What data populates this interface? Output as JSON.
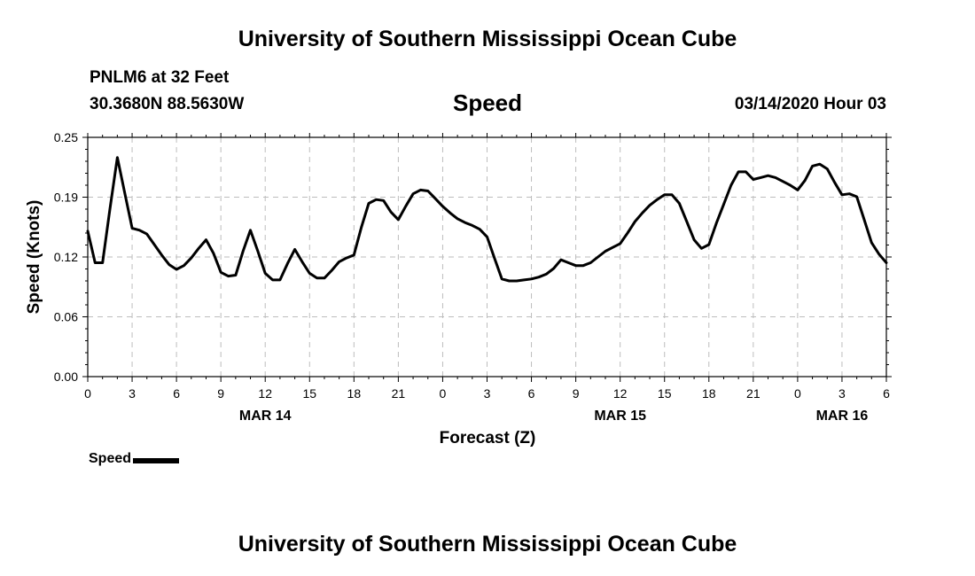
{
  "header": {
    "title_top": "University of Southern Mississippi Ocean Cube",
    "station": "PNLM6 at 32 Feet",
    "coords": "30.3680N 88.5630W",
    "datetime": "03/14/2020 Hour 03",
    "title_bottom": "University of Southern Mississippi Ocean Cube"
  },
  "chart_data": {
    "type": "line",
    "title": "Speed",
    "xlabel": "Forecast (Z)",
    "ylabel": "Speed (Knots)",
    "x_unit": "forecast hour",
    "xlim": [
      0,
      54
    ],
    "ylim": [
      0,
      0.25
    ],
    "yticks": [
      "0.00",
      "0.06",
      "0.12",
      "0.19",
      "0.25"
    ],
    "ytick_values": [
      0,
      0.0625,
      0.125,
      0.1875,
      0.25
    ],
    "xtick_hours": [
      0,
      3,
      6,
      9,
      12,
      15,
      18,
      21,
      24,
      27,
      30,
      33,
      36,
      39,
      42,
      45,
      48,
      51,
      54
    ],
    "xtick_labels": [
      "0",
      "3",
      "6",
      "9",
      "12",
      "15",
      "18",
      "21",
      "0",
      "3",
      "6",
      "9",
      "12",
      "15",
      "18",
      "21",
      "0",
      "3",
      "6"
    ],
    "day_labels": [
      {
        "hour": 12,
        "label": "MAR 14"
      },
      {
        "hour": 36,
        "label": "MAR 15"
      },
      {
        "hour": 51,
        "label": "MAR 16"
      }
    ],
    "grid": true,
    "legend_position": "bottom-left",
    "series": [
      {
        "name": "Speed",
        "color": "#000000",
        "x": [
          0,
          0.5,
          1,
          1.5,
          2,
          2.5,
          3,
          3.5,
          4,
          4.5,
          5,
          5.5,
          6,
          6.5,
          7,
          7.5,
          8,
          8.5,
          9,
          9.5,
          10,
          10.5,
          11,
          11.5,
          12,
          12.5,
          13,
          13.5,
          14,
          14.5,
          15,
          15.5,
          16,
          16.5,
          17,
          17.5,
          18,
          18.5,
          19,
          19.5,
          20,
          20.5,
          21,
          21.5,
          22,
          22.5,
          23,
          23.5,
          24,
          24.5,
          25,
          25.5,
          26,
          26.5,
          27,
          27.5,
          28,
          28.5,
          29,
          29.5,
          30,
          30.5,
          31,
          31.5,
          32,
          32.5,
          33,
          33.5,
          34,
          34.5,
          35,
          35.5,
          36,
          36.5,
          37,
          37.5,
          38,
          38.5,
          39,
          39.5,
          40,
          40.5,
          41,
          41.5,
          42,
          42.5,
          43,
          43.5,
          44,
          44.5,
          45,
          45.5,
          46,
          46.5,
          47,
          47.5,
          48,
          48.5,
          49,
          49.5,
          50,
          50.5,
          51,
          51.5,
          52,
          52.5,
          53,
          53.5,
          54
        ],
        "y": [
          0.152,
          0.119,
          0.119,
          0.175,
          0.229,
          0.192,
          0.155,
          0.153,
          0.149,
          0.138,
          0.127,
          0.117,
          0.112,
          0.116,
          0.124,
          0.134,
          0.143,
          0.129,
          0.109,
          0.105,
          0.106,
          0.131,
          0.153,
          0.131,
          0.108,
          0.101,
          0.101,
          0.118,
          0.133,
          0.12,
          0.108,
          0.103,
          0.103,
          0.111,
          0.12,
          0.124,
          0.127,
          0.156,
          0.181,
          0.185,
          0.184,
          0.172,
          0.164,
          0.178,
          0.191,
          0.195,
          0.194,
          0.186,
          0.178,
          0.171,
          0.165,
          0.161,
          0.158,
          0.154,
          0.146,
          0.124,
          0.102,
          0.1,
          0.1,
          0.101,
          0.102,
          0.104,
          0.107,
          0.113,
          0.122,
          0.119,
          0.116,
          0.116,
          0.119,
          0.125,
          0.131,
          0.135,
          0.139,
          0.15,
          0.162,
          0.171,
          0.179,
          0.185,
          0.19,
          0.19,
          0.181,
          0.162,
          0.143,
          0.134,
          0.138,
          0.16,
          0.18,
          0.2,
          0.214,
          0.214,
          0.206,
          0.208,
          0.21,
          0.208,
          0.204,
          0.2,
          0.195,
          0.205,
          0.22,
          0.222,
          0.217,
          0.203,
          0.19,
          0.191,
          0.188,
          0.164,
          0.14,
          0.128,
          0.119
        ]
      }
    ]
  }
}
